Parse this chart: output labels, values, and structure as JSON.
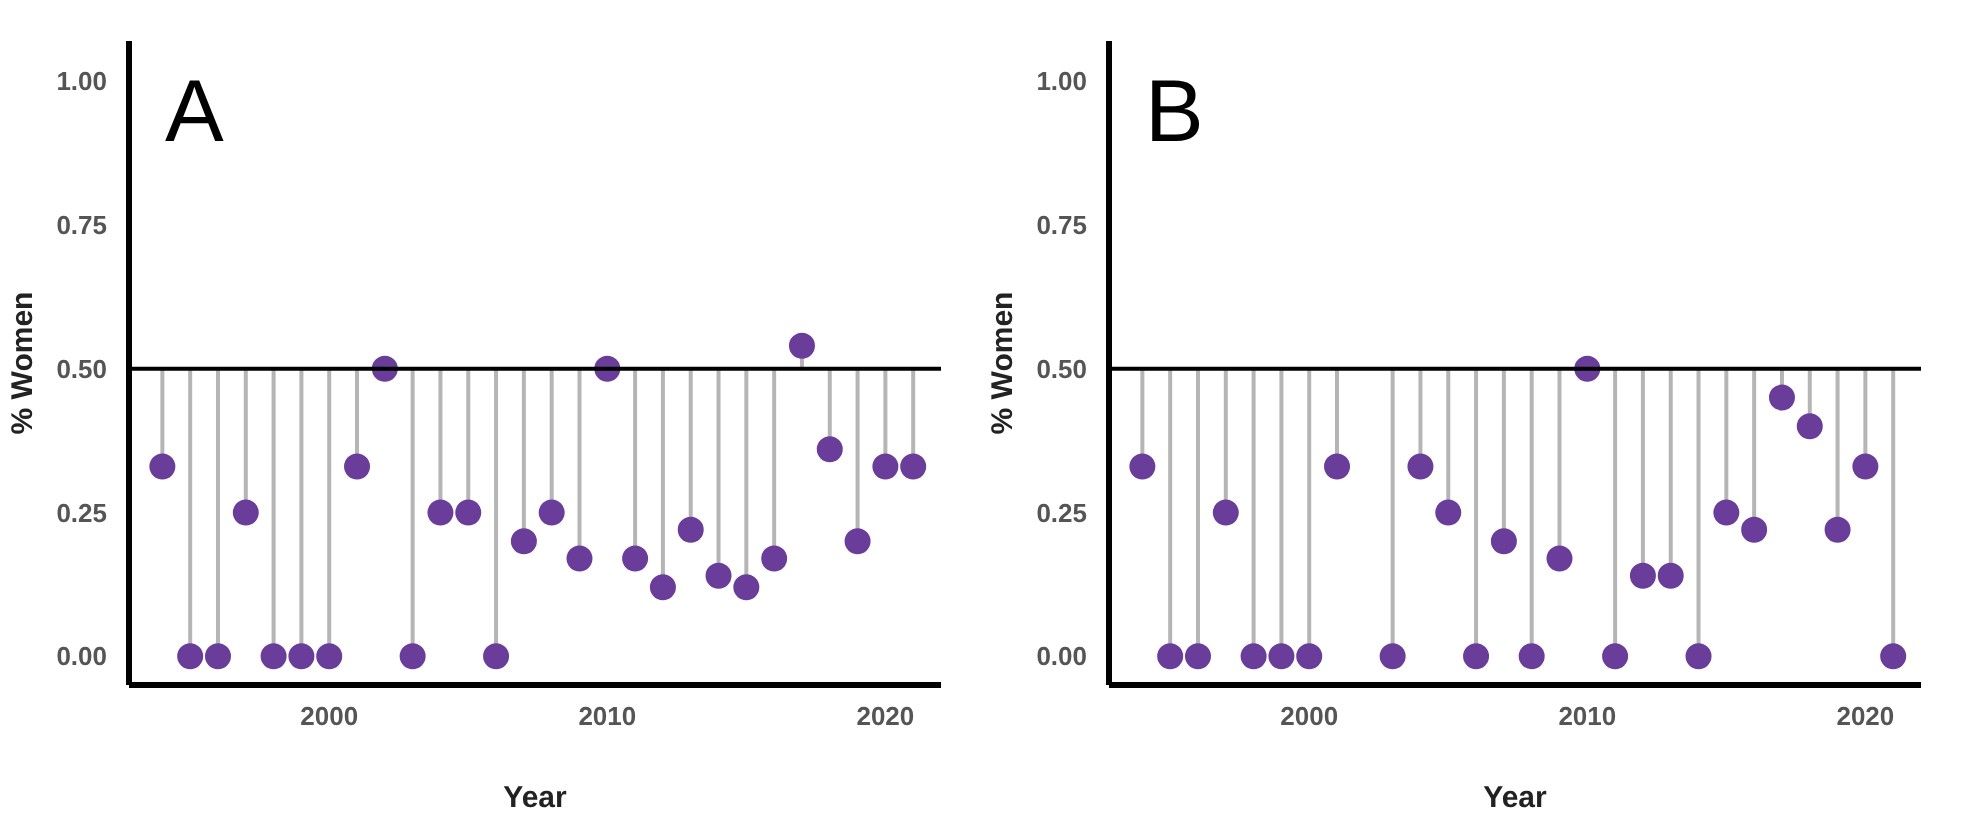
{
  "chart_data": [
    {
      "type": "lollipop",
      "title": "A",
      "xlabel": "Year",
      "ylabel": "% Women",
      "x": [
        1994,
        1995,
        1996,
        1997,
        1998,
        1999,
        2000,
        2001,
        2002,
        2003,
        2004,
        2005,
        2006,
        2007,
        2008,
        2009,
        2010,
        2011,
        2012,
        2013,
        2014,
        2015,
        2016,
        2017,
        2018,
        2019,
        2020,
        2021
      ],
      "series": [
        {
          "color": "#6a3d9a",
          "values": [
            0.33,
            0,
            0,
            0.25,
            0,
            0,
            0,
            0.33,
            0.5,
            0,
            0.25,
            0.25,
            0,
            0.2,
            0.25,
            0.17,
            0.5,
            0.17,
            0.12,
            0.22,
            0.14,
            0.12,
            0.17,
            0.54,
            0.36,
            0.2,
            0.33,
            0.33
          ],
          "errors": [
            [
              0.33,
              0.5
            ],
            [
              0,
              0.5
            ],
            [
              0,
              0.5
            ],
            [
              0.25,
              0.5
            ],
            [
              0,
              0.5
            ],
            [
              0,
              0.5
            ],
            [
              0,
              0.5
            ],
            [
              0.33,
              0.5
            ],
            null,
            [
              0,
              0.5
            ],
            [
              0.25,
              0.5
            ],
            [
              0.25,
              0.5
            ],
            [
              0,
              0.5
            ],
            [
              0.2,
              0.5
            ],
            [
              0.25,
              0.5
            ],
            [
              0.17,
              0.5
            ],
            null,
            [
              0.17,
              0.5
            ],
            [
              0.12,
              0.5
            ],
            [
              0.22,
              0.5
            ],
            [
              0.14,
              0.5
            ],
            [
              0.12,
              0.5
            ],
            [
              0.17,
              0.5
            ],
            [
              0.5,
              0.54
            ],
            [
              0.36,
              0.5
            ],
            [
              0.2,
              0.5
            ],
            [
              0.33,
              0.5
            ],
            [
              0.33,
              0.5
            ]
          ]
        }
      ],
      "xlim": [
        1992.8,
        2022
      ],
      "xticks": [
        2000,
        2010,
        2020
      ],
      "ylim": [
        -0.05,
        1.07
      ],
      "yticks": [
        {
          "value": 0,
          "label": "0.00"
        },
        {
          "value": 0.25,
          "label": "0.25"
        },
        {
          "value": 0.5,
          "label": "0.50"
        },
        {
          "value": 0.75,
          "label": "0.75"
        },
        {
          "value": 1,
          "label": "1.00"
        }
      ],
      "ref_lines": [
        {
          "axis": "y",
          "value": 0.5,
          "color": "#000000"
        }
      ],
      "marker": "circle"
    },
    {
      "type": "lollipop",
      "title": "B",
      "xlabel": "Year",
      "ylabel": "% Women",
      "x": [
        1994,
        1995,
        1996,
        1997,
        1998,
        1999,
        2000,
        2001,
        2002,
        2003,
        2004,
        2005,
        2006,
        2007,
        2008,
        2009,
        2010,
        2011,
        2012,
        2013,
        2014,
        2015,
        2016,
        2017,
        2018,
        2019,
        2020,
        2021
      ],
      "series": [
        {
          "color": "#6a3d9a",
          "values": [
            0.33,
            0,
            0,
            0.25,
            0,
            0,
            0,
            0.33,
            null,
            0,
            0.33,
            0.25,
            0,
            0.2,
            0,
            0.17,
            0.5,
            0,
            0.14,
            0.14,
            0,
            0.25,
            0.22,
            0.45,
            0.4,
            0.22,
            0.33,
            0
          ],
          "errors": [
            [
              0.33,
              0.5
            ],
            [
              0,
              0.5
            ],
            [
              0,
              0.5
            ],
            [
              0.25,
              0.5
            ],
            [
              0,
              0.5
            ],
            [
              0,
              0.5
            ],
            [
              0,
              0.5
            ],
            [
              0.33,
              0.5
            ],
            null,
            [
              0,
              0.5
            ],
            [
              0.33,
              0.5
            ],
            [
              0.25,
              0.5
            ],
            [
              0,
              0.5
            ],
            [
              0.2,
              0.5
            ],
            [
              0,
              0.5
            ],
            [
              0.17,
              0.5
            ],
            null,
            [
              0,
              0.5
            ],
            [
              0.14,
              0.5
            ],
            [
              0.14,
              0.5
            ],
            [
              0,
              0.5
            ],
            [
              0.25,
              0.5
            ],
            [
              0.22,
              0.5
            ],
            [
              0.45,
              0.5
            ],
            [
              0.4,
              0.5
            ],
            [
              0.22,
              0.5
            ],
            [
              0.33,
              0.5
            ],
            [
              0,
              0.5
            ]
          ]
        }
      ],
      "xlim": [
        1992.8,
        2022
      ],
      "xticks": [
        2000,
        2010,
        2020
      ],
      "ylim": [
        -0.05,
        1.07
      ],
      "yticks": [
        {
          "value": 0,
          "label": "0.00"
        },
        {
          "value": 0.25,
          "label": "0.25"
        },
        {
          "value": 0.5,
          "label": "0.50"
        },
        {
          "value": 0.75,
          "label": "0.75"
        },
        {
          "value": 1,
          "label": "1.00"
        }
      ],
      "ref_lines": [
        {
          "axis": "y",
          "value": 0.5,
          "color": "#000000"
        }
      ],
      "marker": "circle"
    }
  ]
}
